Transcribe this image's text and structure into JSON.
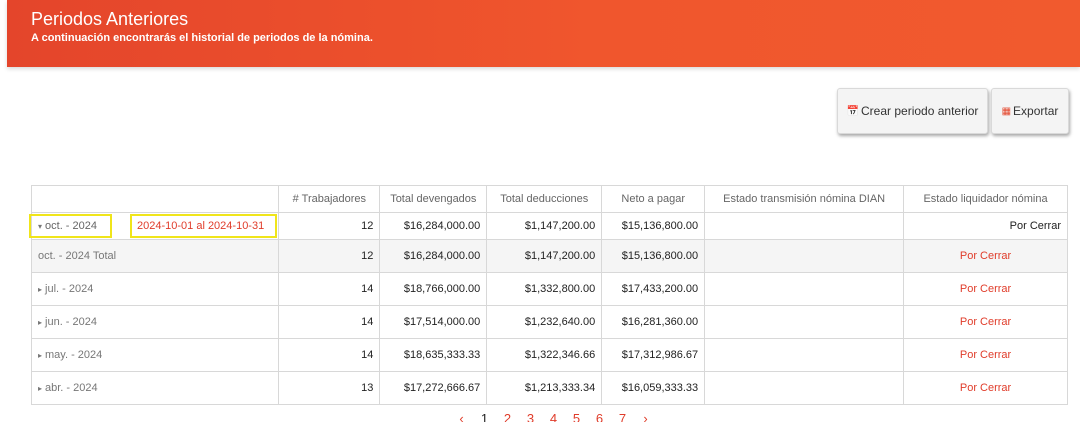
{
  "header": {
    "title": "Periodos Anteriores",
    "subtitle": "A continuación encontrarás el historial de periodos de la nómina."
  },
  "toolbar": {
    "create_label": "Crear periodo anterior",
    "export_label": "Exportar",
    "create_icon": "calendar-icon",
    "export_icon": "spreadsheet-icon"
  },
  "table": {
    "columns": [
      "",
      "# Trabajadores",
      "Total devengados",
      "Total deducciones",
      "Neto a pagar",
      "Estado transmisión nómina DIAN",
      "Estado liquidador nómina"
    ],
    "expanded": {
      "month": "oct. - 2024",
      "range": "2024-10-01 al 2024-10-31",
      "workers": "12",
      "devengados": "$16,284,000.00",
      "deducciones": "$1,147,200.00",
      "neto": "$15,136,800.00",
      "dian": "",
      "estado": "Por Cerrar"
    },
    "total": {
      "label": "oct. - 2024 Total",
      "workers": "12",
      "devengados": "$16,284,000.00",
      "deducciones": "$1,147,200.00",
      "neto": "$15,136,800.00",
      "dian": "",
      "estado": "Por Cerrar"
    },
    "rows": [
      {
        "label": "jul. - 2024",
        "workers": "14",
        "devengados": "$18,766,000.00",
        "deducciones": "$1,332,800.00",
        "neto": "$17,433,200.00",
        "dian": "",
        "estado": "Por Cerrar"
      },
      {
        "label": "jun. - 2024",
        "workers": "14",
        "devengados": "$17,514,000.00",
        "deducciones": "$1,232,640.00",
        "neto": "$16,281,360.00",
        "dian": "",
        "estado": "Por Cerrar"
      },
      {
        "label": "may. - 2024",
        "workers": "14",
        "devengados": "$18,635,333.33",
        "deducciones": "$1,322,346.66",
        "neto": "$17,312,986.67",
        "dian": "",
        "estado": "Por Cerrar"
      },
      {
        "label": "abr. - 2024",
        "workers": "13",
        "devengados": "$17,272,666.67",
        "deducciones": "$1,213,333.34",
        "neto": "$16,059,333.33",
        "dian": "",
        "estado": "Por Cerrar"
      }
    ]
  },
  "pager": {
    "prev": "‹",
    "next": "›",
    "pages": [
      "1",
      "2",
      "3",
      "4",
      "5",
      "6",
      "7"
    ],
    "active": "1"
  }
}
